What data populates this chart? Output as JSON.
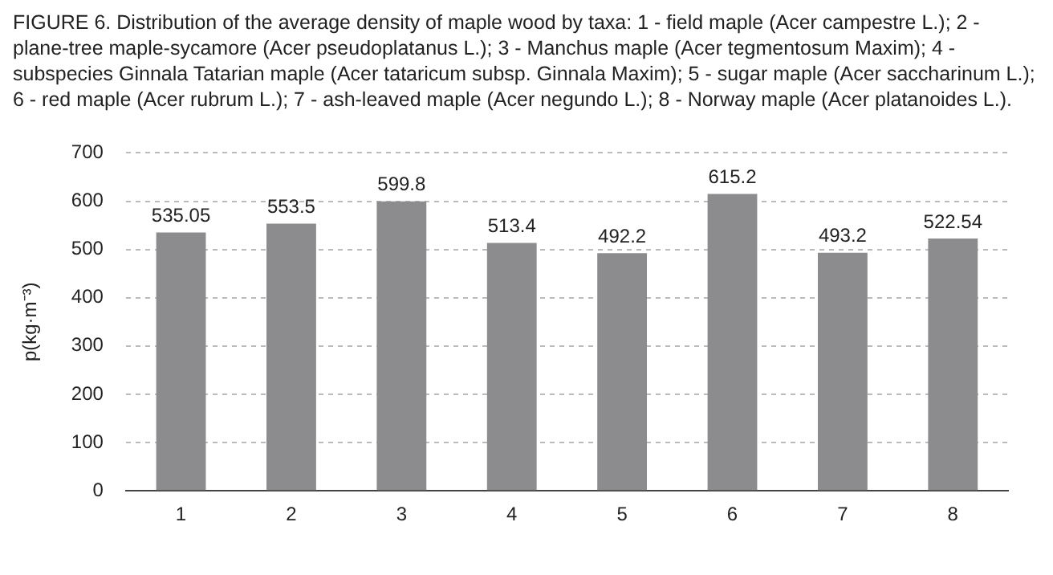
{
  "chart_data": {
    "type": "bar",
    "title": "FIGURE 6. Distribution of the average density of maple wood by taxa: 1 - field maple (Acer campestre L.); 2 - plane-tree maple-sycamore (Acer pseudoplatanus L.); 3 - Manchus maple (Acer tegmentosum Maxim); 4 - subspecies Ginnala Tatarian maple (Acer tataricum subsp. Ginnala Maxim); 5 - sugar maple (Acer saccharinum L.); 6 - red maple (Acer rubrum L.); 7 - ash-leaved maple (Acer negundo L.); 8 - Norway maple (Acer platanoides L.).",
    "ylabel": "p(kg·m⁻³)",
    "categories": [
      "1",
      "2",
      "3",
      "4",
      "5",
      "6",
      "7",
      "8"
    ],
    "values": [
      535.05,
      553.5,
      599.8,
      513.4,
      492.2,
      615.2,
      493.2,
      522.54
    ],
    "color": "#8c8c8e",
    "ylim": [
      0,
      700
    ],
    "yticks": [
      0,
      100,
      200,
      300,
      400,
      500,
      600,
      700
    ],
    "grid": "y",
    "data_labels": true,
    "legend": false
  }
}
